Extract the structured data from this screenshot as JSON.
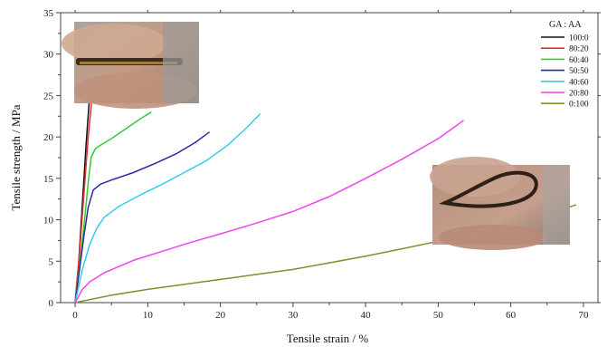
{
  "chart_data": {
    "type": "line",
    "xlabel": "Tensile strain / %",
    "ylabel": "Tensile strength / MPa",
    "xlim": [
      -2,
      72
    ],
    "ylim": [
      0,
      35
    ],
    "xticks": [
      0,
      10,
      20,
      30,
      40,
      50,
      60,
      70
    ],
    "yticks": [
      0,
      5,
      10,
      15,
      20,
      25,
      30,
      35
    ],
    "legend_title": "GA : AA",
    "legend_position": "top-right",
    "inset_photos": [
      {
        "name": "photo-bent-sample-small",
        "position": "top-left"
      },
      {
        "name": "photo-bent-sample-loop",
        "position": "right"
      }
    ],
    "series": [
      {
        "name": "100:0",
        "color": "#111111",
        "x": [
          0,
          0.5,
          1,
          1.5,
          2,
          2.6
        ],
        "y": [
          0,
          5,
          12,
          19,
          25,
          29.3
        ]
      },
      {
        "name": "80:20",
        "color": "#e03030",
        "x": [
          0,
          0.6,
          1.2,
          1.8,
          2.3,
          2.8
        ],
        "y": [
          0,
          6,
          13,
          20,
          24.5,
          27.5
        ]
      },
      {
        "name": "60:40",
        "color": "#33cc33",
        "x": [
          0,
          0.7,
          1.3,
          1.8,
          2.2,
          2.8,
          3.5,
          5,
          7,
          9,
          10.5
        ],
        "y": [
          0,
          5,
          10,
          14.5,
          17.5,
          18.6,
          19,
          19.8,
          21,
          22.2,
          23
        ]
      },
      {
        "name": "50:50",
        "color": "#2a2aa0",
        "x": [
          0,
          0.6,
          1.2,
          1.8,
          2.5,
          3.5,
          5,
          8,
          11,
          14,
          16.5,
          18.5
        ],
        "y": [
          0,
          4,
          8,
          11.5,
          13.6,
          14.3,
          14.8,
          15.7,
          16.8,
          18,
          19.3,
          20.6
        ]
      },
      {
        "name": "40:60",
        "color": "#33ccee",
        "x": [
          0,
          1,
          2,
          3,
          4,
          6,
          9,
          12,
          15,
          18,
          21,
          23.5,
          25.5
        ],
        "y": [
          0,
          4,
          7,
          9,
          10.3,
          11.6,
          13,
          14.3,
          15.7,
          17.1,
          19,
          21,
          22.8
        ]
      },
      {
        "name": "20:80",
        "color": "#ee44ee",
        "x": [
          0,
          1,
          2,
          4,
          8,
          12,
          16,
          20,
          25,
          30,
          35,
          40,
          45,
          50,
          53.5
        ],
        "y": [
          0,
          1.6,
          2.5,
          3.6,
          5.1,
          6.2,
          7.3,
          8.3,
          9.6,
          11,
          12.8,
          15,
          17.3,
          19.8,
          22
        ]
      },
      {
        "name": "0:100",
        "color": "#8a8a2a",
        "x": [
          0,
          5,
          10,
          15,
          20,
          25,
          30,
          35,
          40,
          45,
          50,
          55,
          60,
          65,
          69
        ],
        "y": [
          0,
          0.9,
          1.6,
          2.2,
          2.8,
          3.4,
          4,
          4.8,
          5.6,
          6.5,
          7.4,
          8.4,
          9.5,
          10.7,
          11.8
        ]
      }
    ]
  }
}
